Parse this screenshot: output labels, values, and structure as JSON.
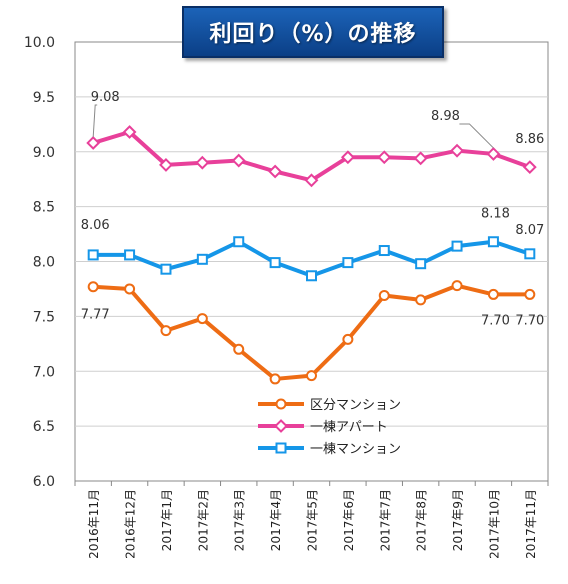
{
  "chart_data": {
    "type": "line",
    "title": "利回り（%）の推移",
    "xlabel": "",
    "ylabel": "",
    "ylim": [
      6.0,
      10.0
    ],
    "yticks": [
      "6.0",
      "6.5",
      "7.0",
      "7.5",
      "8.0",
      "8.5",
      "9.0",
      "9.5",
      "10.0"
    ],
    "grid": true,
    "legend_position": "lower-center",
    "categories": [
      "2016年11月",
      "2016年12月",
      "2017年1月",
      "2017年2月",
      "2017年3月",
      "2017年4月",
      "2017年5月",
      "2017年6月",
      "2017年7月",
      "2017年8月",
      "2017年9月",
      "2017年10月",
      "2017年11月"
    ],
    "series": [
      {
        "name": "区分マンション",
        "color": "#ee6c14",
        "marker": "circle",
        "values": [
          7.77,
          7.75,
          7.37,
          7.48,
          7.2,
          6.93,
          6.96,
          7.29,
          7.69,
          7.65,
          7.78,
          7.7,
          7.7
        ]
      },
      {
        "name": "一棟アパート",
        "color": "#e8409a",
        "marker": "diamond",
        "values": [
          9.08,
          9.18,
          8.88,
          8.9,
          8.92,
          8.82,
          8.74,
          8.95,
          8.95,
          8.94,
          9.01,
          8.98,
          8.86
        ]
      },
      {
        "name": "一棟マンション",
        "color": "#1596e8",
        "marker": "square",
        "values": [
          8.06,
          8.06,
          7.93,
          8.02,
          8.18,
          7.99,
          7.87,
          7.99,
          8.1,
          7.98,
          8.14,
          8.18,
          8.07
        ]
      }
    ],
    "data_labels": [
      {
        "series": 1,
        "index": 0,
        "text": "9.08"
      },
      {
        "series": 1,
        "index": 11,
        "text": "8.98"
      },
      {
        "series": 1,
        "index": 12,
        "text": "8.86"
      },
      {
        "series": 2,
        "index": 0,
        "text": "8.06"
      },
      {
        "series": 2,
        "index": 11,
        "text": "8.18"
      },
      {
        "series": 2,
        "index": 12,
        "text": "8.07"
      },
      {
        "series": 0,
        "index": 0,
        "text": "7.77"
      },
      {
        "series": 0,
        "index": 11,
        "text": "7.70"
      },
      {
        "series": 0,
        "index": 12,
        "text": "7.70"
      }
    ]
  }
}
